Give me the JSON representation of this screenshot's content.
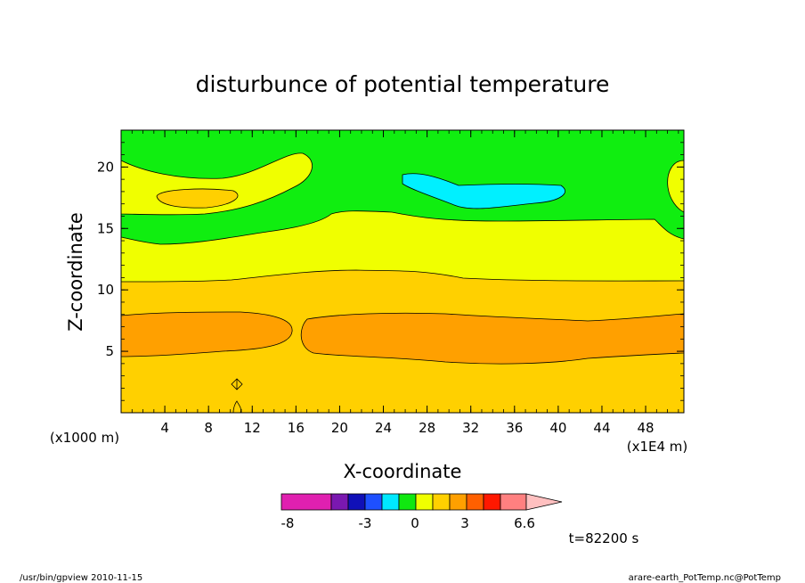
{
  "chart_data": {
    "type": "contour",
    "title": "disturbunce of potential temperature",
    "xlabel": "X-coordinate",
    "ylabel": "Z-coordinate",
    "x_unit_left": "(x1000 m)",
    "x_unit_right": "(x1E4 m)",
    "xlim": [
      0,
      51.5
    ],
    "ylim": [
      0,
      23
    ],
    "x_ticks": [
      "4",
      "8",
      "12",
      "16",
      "20",
      "24",
      "28",
      "32",
      "36",
      "40",
      "44",
      "48"
    ],
    "y_ticks": [
      "5",
      "10",
      "15",
      "20"
    ],
    "colorbar_labels": [
      "-8",
      "-3",
      "0",
      "3",
      "6.6"
    ],
    "colorbar_colors": [
      "#e020b0",
      "#7a18b0",
      "#1010b8",
      "#1e50ff",
      "#00e8ff",
      "#10e810",
      "#f0ff00",
      "#ffd000",
      "#ffa000",
      "#ff6000",
      "#ff1800",
      "#ff8080",
      "#ffc0c0"
    ],
    "colors": {
      "band_high": "#10ee10",
      "band_mid": "#f0ff00",
      "band_warm": "#ffd000",
      "band_hot": "#ffa000",
      "cold_pocket": "#00f0ff"
    },
    "time_label": "t=82200 s"
  },
  "footer": {
    "left": "/usr/bin/gpview   2010-11-15",
    "right": "arare-earth_PotTemp.nc@PotTemp"
  }
}
